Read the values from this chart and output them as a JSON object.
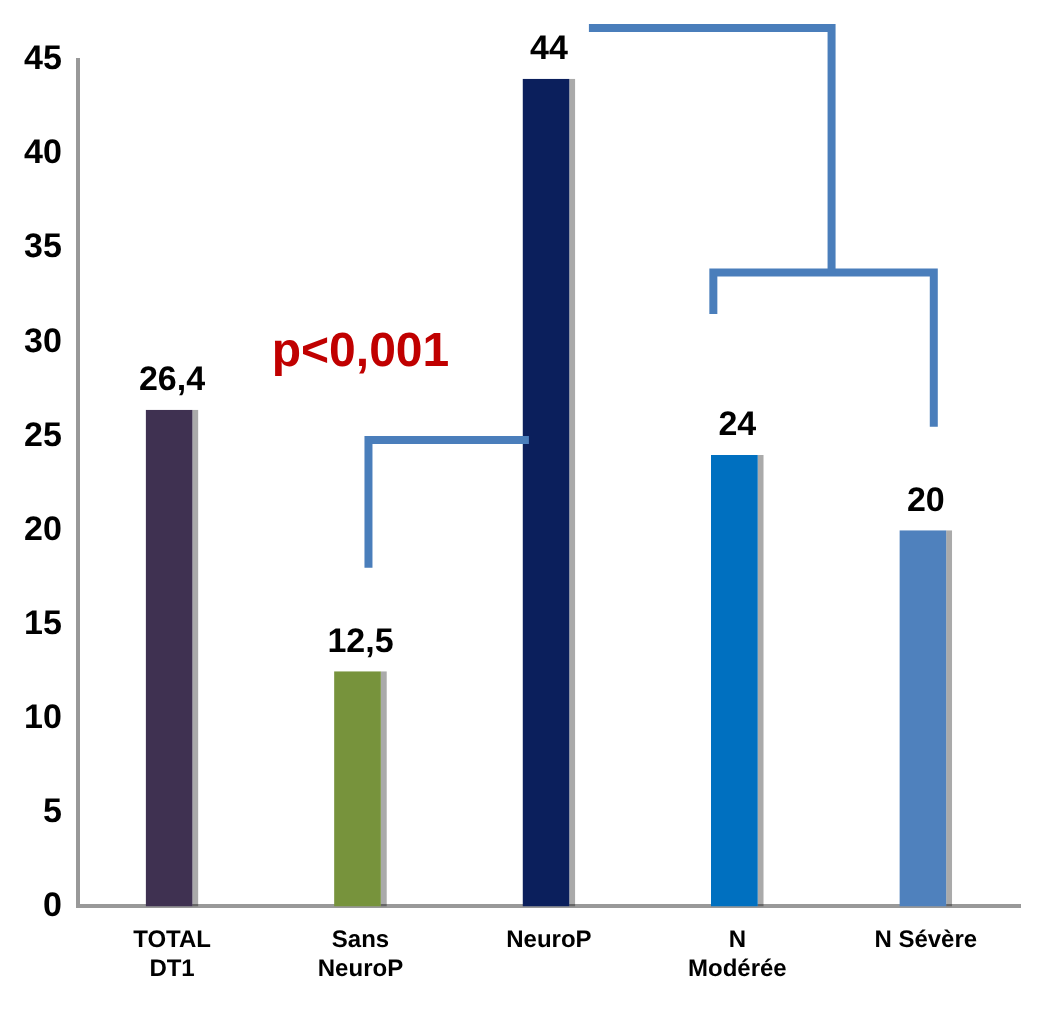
{
  "chart_data": {
    "type": "bar",
    "categories": [
      "TOTAL DT1",
      "Sans NeuroP",
      "NeuroP",
      "N Modérée",
      "N Sévère"
    ],
    "values": [
      26.4,
      12.5,
      44,
      24,
      20
    ],
    "colors": [
      "#3f3151",
      "#77933c",
      "#0b1f5c",
      "#0070c0",
      "#4f81bd"
    ],
    "value_labels": [
      "26,4",
      "12,5",
      "44",
      "24",
      "20"
    ],
    "ylim": [
      0,
      45
    ],
    "yticks": [
      0,
      5,
      10,
      15,
      20,
      25,
      30,
      35,
      40,
      45
    ],
    "grid": false,
    "legend": false,
    "annotations": [
      "p<0,001"
    ]
  }
}
